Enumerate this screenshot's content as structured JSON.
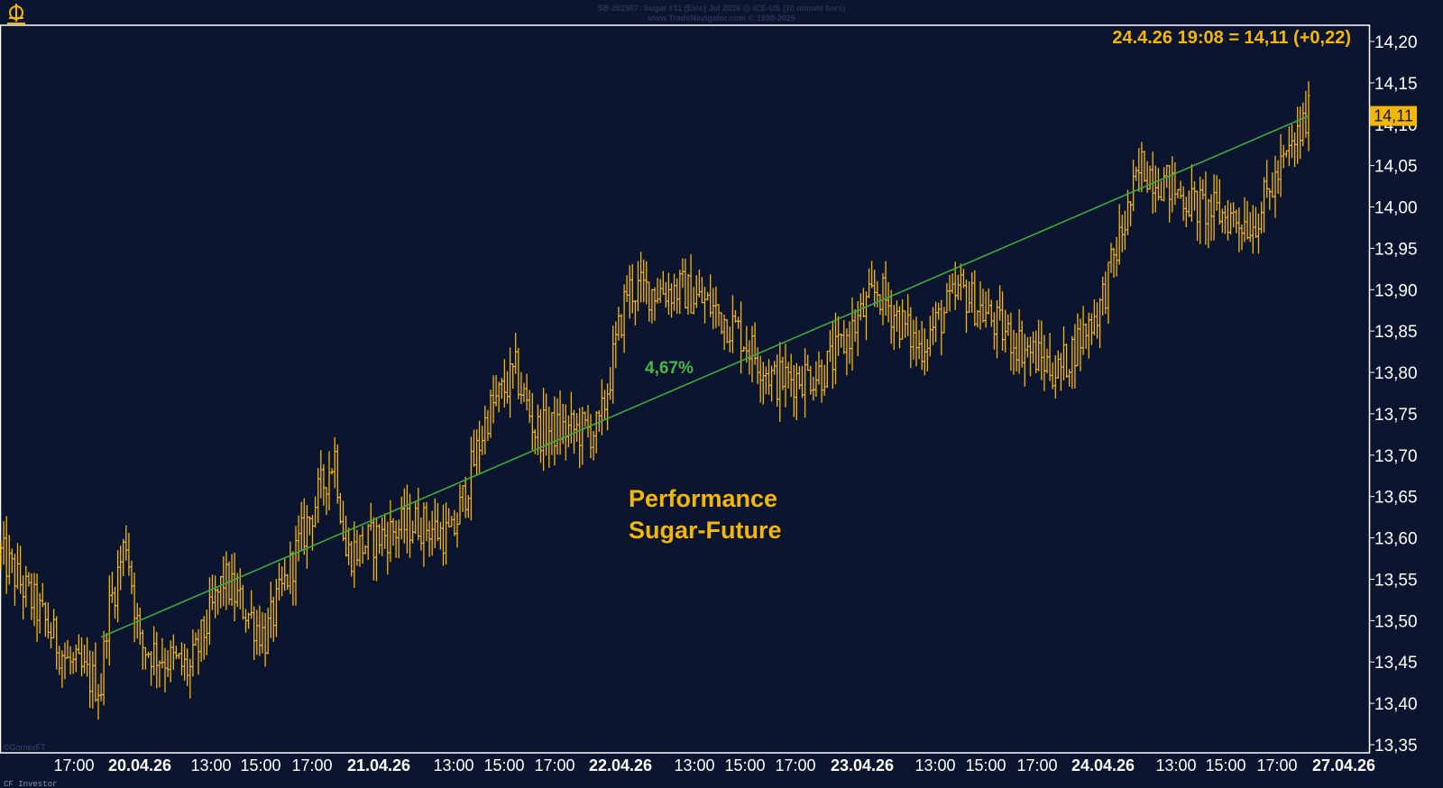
{
  "header": {
    "title_line1": "SB-202607: Sugar #11 (Elec) Jul 2026 @ ICE-US (10 minute bars)",
    "title_line2": "www.TradeNavigator.com © 1999-2026"
  },
  "last_quote": "24.4.26 19:08 = 14,11 (+0,22)",
  "last_price_tag": "14,11",
  "trend_label": "4,67%",
  "annotation": {
    "line1": "Performance",
    "line2": "Sugar-Future"
  },
  "watermark": "©GomexFT",
  "footer_text": "CF Investor",
  "colors": {
    "background": "#0c1530",
    "bars": "#f5b800",
    "trendline": "#3caa3c",
    "trend_label": "#45b845",
    "annotation": "#f5b800",
    "axis_text": "#ffffff",
    "frame": "#ffffff"
  },
  "chart_data": {
    "type": "ohlc",
    "title": "SB-202607: Sugar #11 (Elec) Jul 2026 @ ICE-US (10 minute bars)",
    "ylim": [
      13.35,
      14.22
    ],
    "y_ticks": [
      "14,20",
      "14,15",
      "14,10",
      "14,05",
      "14,00",
      "13,95",
      "13,90",
      "13,85",
      "13,80",
      "13,75",
      "13,70",
      "13,65",
      "13,60",
      "13,55",
      "13,50",
      "13,45",
      "13,40",
      "13,35"
    ],
    "x_ticks": [
      {
        "label": "17:00",
        "bold": false
      },
      {
        "label": "20.04.26",
        "bold": true
      },
      {
        "label": "13:00",
        "bold": false
      },
      {
        "label": "15:00",
        "bold": false
      },
      {
        "label": "17:00",
        "bold": false
      },
      {
        "label": "21.04.26",
        "bold": true
      },
      {
        "label": "13:00",
        "bold": false
      },
      {
        "label": "15:00",
        "bold": false
      },
      {
        "label": "17:00",
        "bold": false
      },
      {
        "label": "22.04.26",
        "bold": true
      },
      {
        "label": "13:00",
        "bold": false
      },
      {
        "label": "15:00",
        "bold": false
      },
      {
        "label": "17:00",
        "bold": false
      },
      {
        "label": "23.04.26",
        "bold": true
      },
      {
        "label": "13:00",
        "bold": false
      },
      {
        "label": "15:00",
        "bold": false
      },
      {
        "label": "17:00",
        "bold": false
      },
      {
        "label": "24.04.26",
        "bold": true
      },
      {
        "label": "13:00",
        "bold": false
      },
      {
        "label": "15:00",
        "bold": false
      },
      {
        "label": "17:00",
        "bold": false
      },
      {
        "label": "27.04.26",
        "bold": true
      }
    ],
    "trendline": {
      "start_index": 36,
      "start_value": 13.48,
      "end_index": 470,
      "end_value": 14.11
    },
    "price_path": [
      [
        0,
        13.58
      ],
      [
        12,
        13.52
      ],
      [
        24,
        13.45
      ],
      [
        36,
        13.42
      ],
      [
        38,
        13.5
      ],
      [
        45,
        13.6
      ],
      [
        50,
        13.47
      ],
      [
        68,
        13.44
      ],
      [
        80,
        13.55
      ],
      [
        95,
        13.48
      ],
      [
        108,
        13.6
      ],
      [
        120,
        13.7
      ],
      [
        124,
        13.58
      ],
      [
        135,
        13.6
      ],
      [
        150,
        13.62
      ],
      [
        162,
        13.6
      ],
      [
        175,
        13.75
      ],
      [
        185,
        13.8
      ],
      [
        192,
        13.73
      ],
      [
        205,
        13.73
      ],
      [
        215,
        13.73
      ],
      [
        225,
        13.9
      ],
      [
        245,
        13.9
      ],
      [
        255,
        13.88
      ],
      [
        265,
        13.85
      ],
      [
        278,
        13.79
      ],
      [
        295,
        13.8
      ],
      [
        300,
        13.82
      ],
      [
        315,
        13.9
      ],
      [
        330,
        13.83
      ],
      [
        345,
        13.9
      ],
      [
        360,
        13.85
      ],
      [
        380,
        13.8
      ],
      [
        395,
        13.88
      ],
      [
        410,
        14.05
      ],
      [
        430,
        14.0
      ],
      [
        450,
        13.98
      ],
      [
        470,
        14.11
      ]
    ],
    "n_bars": 471
  }
}
